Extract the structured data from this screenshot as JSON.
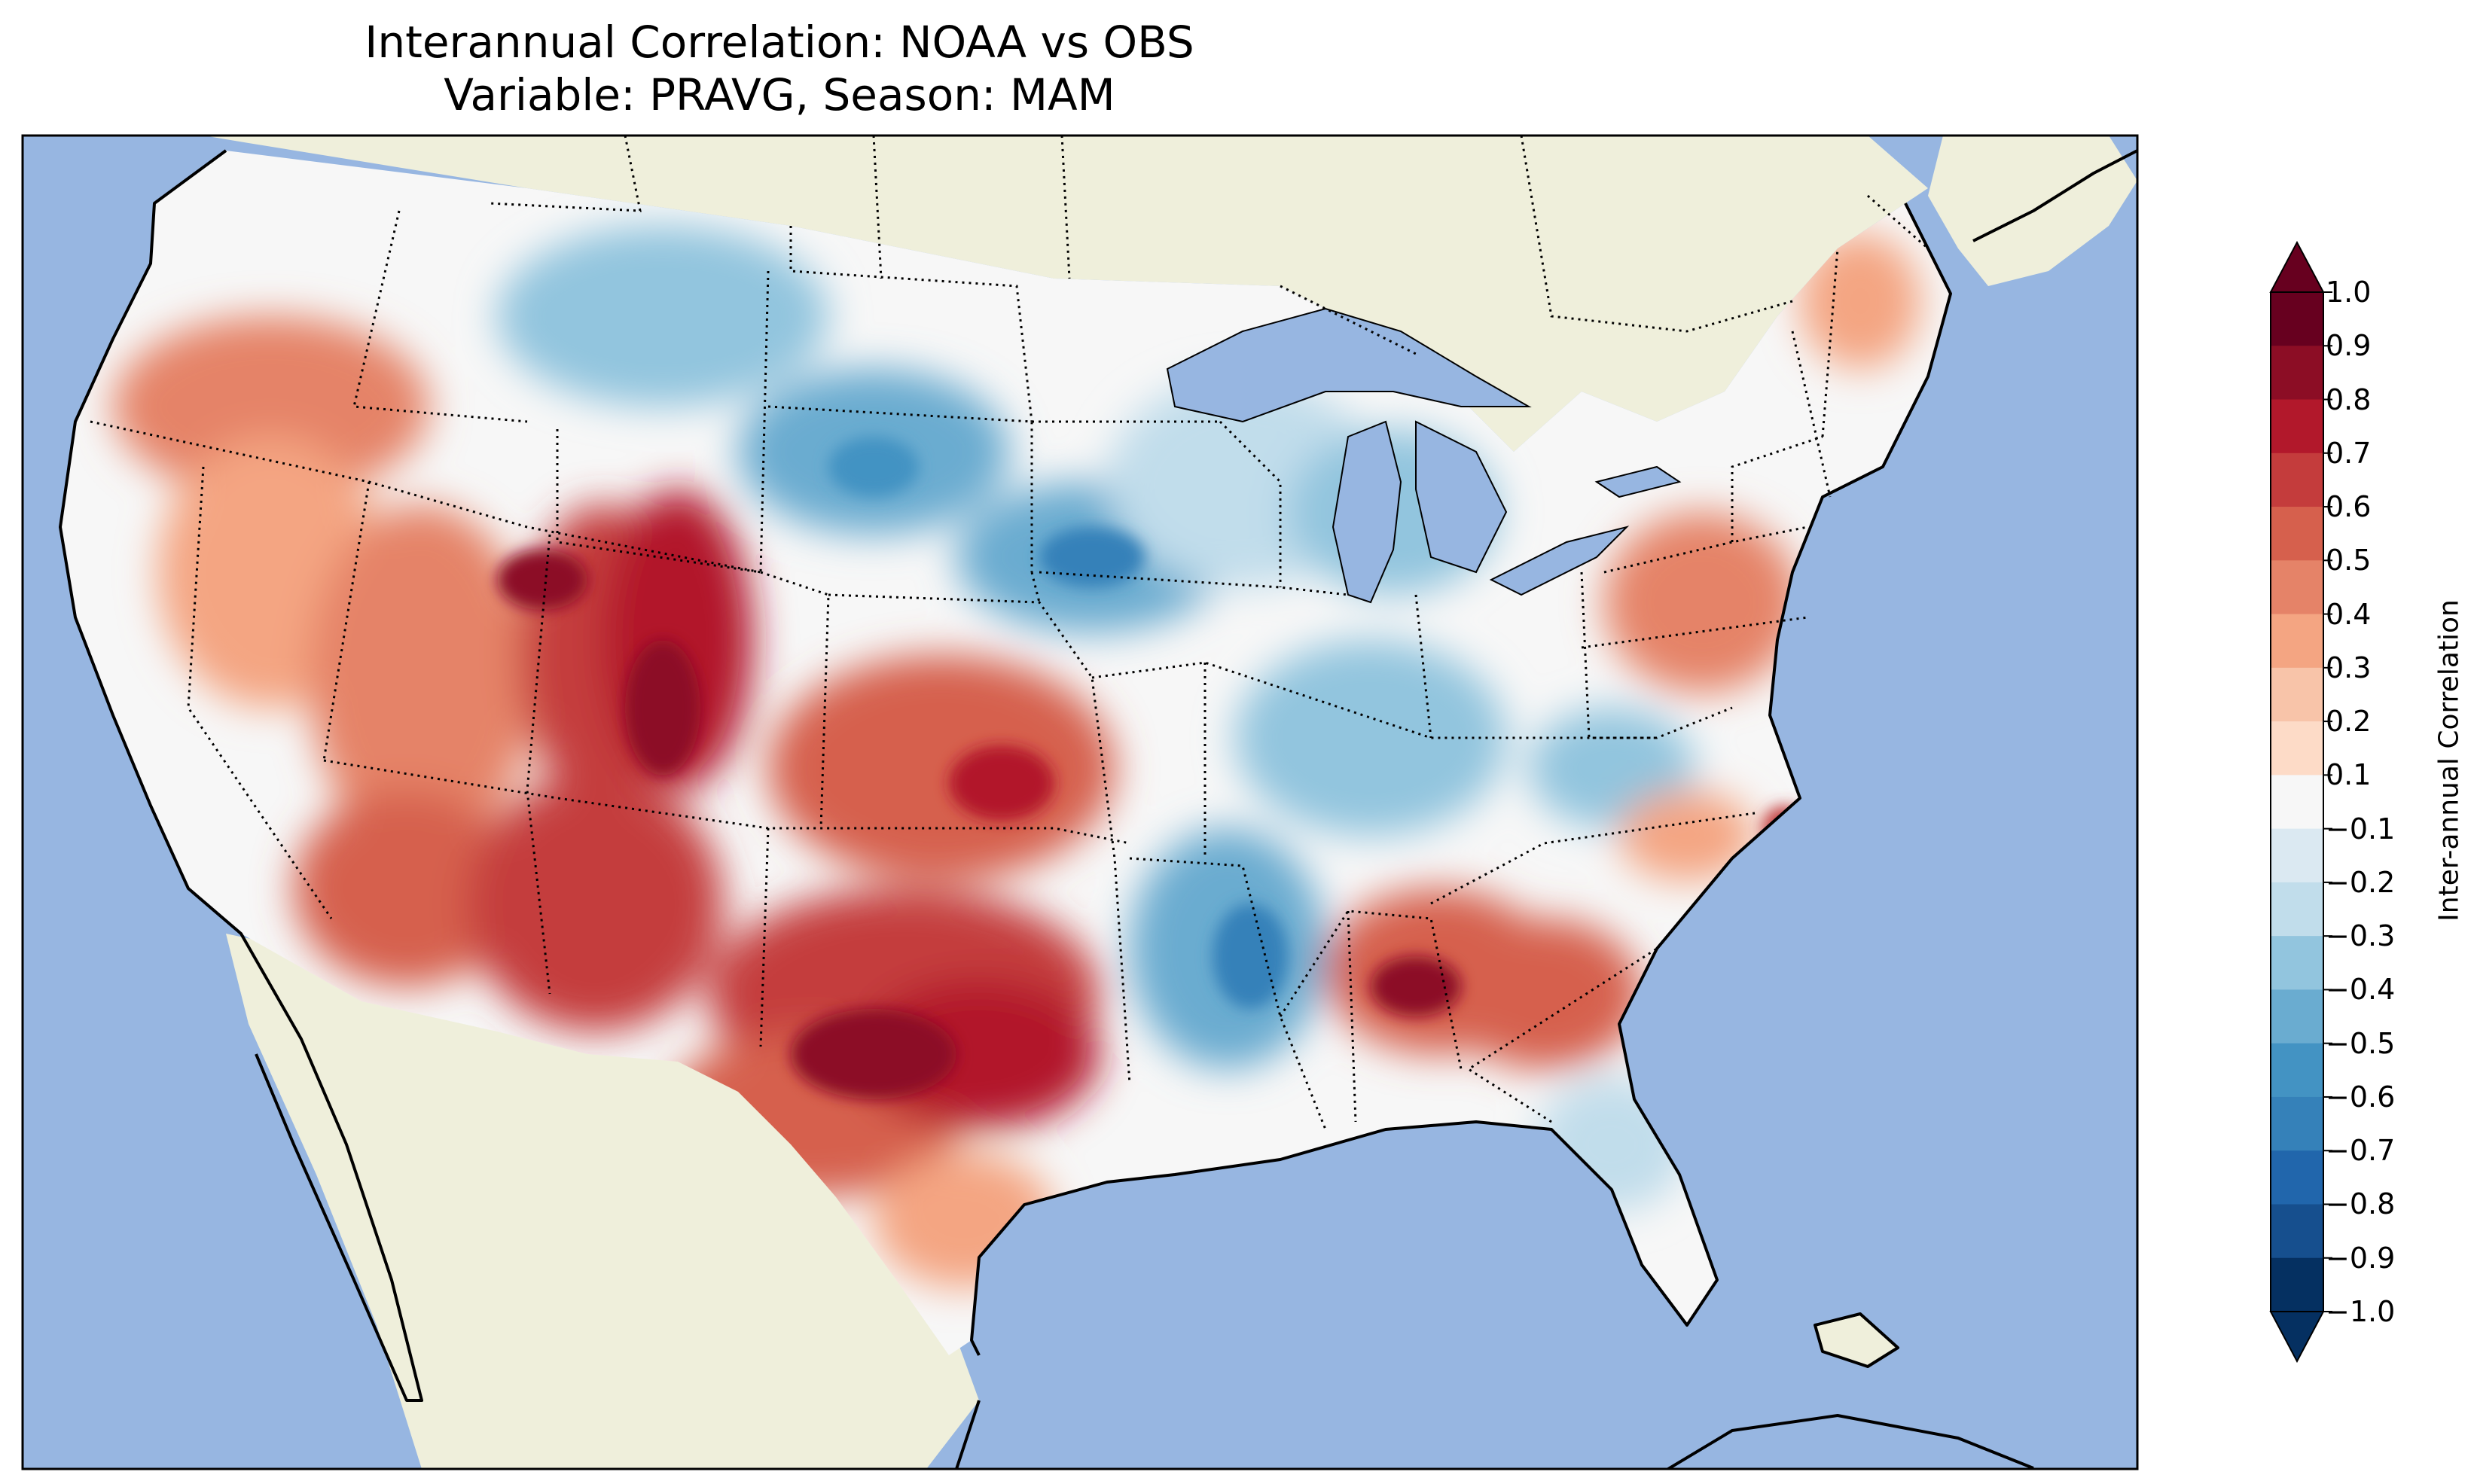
{
  "title": {
    "line1": "Interannual Correlation: NOAA vs OBS",
    "line2": "Variable: PRAVG, Season: MAM"
  },
  "map": {
    "region": "Contiguous United States",
    "ocean_color": "#97b6e1",
    "land_color": "#efefdb",
    "lake_color": "#97b6e1",
    "borders": "dotted state and national boundaries, solid coastlines"
  },
  "colorbar": {
    "label": "Inter-annual Correlation",
    "colormap": "RdBu_r",
    "extend": "both",
    "ticks": [
      "1.0",
      "0.9",
      "0.8",
      "0.7",
      "0.6",
      "0.5",
      "0.4",
      "0.3",
      "0.2",
      "0.1",
      "−0.1",
      "−0.2",
      "−0.3",
      "−0.4",
      "−0.5",
      "−0.6",
      "−0.7",
      "−0.8",
      "−0.9",
      "−1.0"
    ],
    "colors": [
      "#67001f",
      "#8c0d25",
      "#b2182b",
      "#c43c3c",
      "#d6604d",
      "#e58368",
      "#f4a582",
      "#f8c4a9",
      "#fddbc7",
      "#f7f7f7",
      "#dbe9f2",
      "#c1ddeb",
      "#92c5de",
      "#6aacd0",
      "#4393c3",
      "#3581b9",
      "#2166ac",
      "#164f8e",
      "#053061"
    ]
  },
  "chart_data": {
    "type": "heatmap",
    "title": "Interannual Correlation: NOAA vs OBS\nVariable: PRAVG, Season: MAM",
    "colorbar_label": "Inter-annual Correlation",
    "range": [
      -1.0,
      1.0
    ],
    "levels": [
      -1.0,
      -0.9,
      -0.8,
      -0.7,
      -0.6,
      -0.5,
      -0.4,
      -0.3,
      -0.2,
      -0.1,
      0.1,
      0.2,
      0.3,
      0.4,
      0.5,
      0.6,
      0.7,
      0.8,
      0.9,
      1.0
    ],
    "regions": [
      {
        "name": "Great Basin / Nevada",
        "value": 0.45
      },
      {
        "name": "Utah / Colorado Rockies",
        "value": 0.65
      },
      {
        "name": "Arizona / New Mexico",
        "value": 0.6
      },
      {
        "name": "Texas / Oklahoma",
        "value": 0.7
      },
      {
        "name": "Kansas",
        "value": 0.55
      },
      {
        "name": "Northern Plains (Montana/Dakotas)",
        "value": -0.4
      },
      {
        "name": "Upper Midwest / Iowa",
        "value": -0.45
      },
      {
        "name": "Great Lakes",
        "value": -0.35
      },
      {
        "name": "Ohio Valley",
        "value": -0.4
      },
      {
        "name": "Lower Mississippi Valley",
        "value": -0.5
      },
      {
        "name": "Georgia / Alabama",
        "value": 0.65
      },
      {
        "name": "Mid-Atlantic",
        "value": 0.45
      },
      {
        "name": "New England",
        "value": 0.3
      },
      {
        "name": "Florida",
        "value": -0.3
      },
      {
        "name": "California coast",
        "value": 0.05
      },
      {
        "name": "Pacific Northwest",
        "value": 0.35
      }
    ]
  }
}
